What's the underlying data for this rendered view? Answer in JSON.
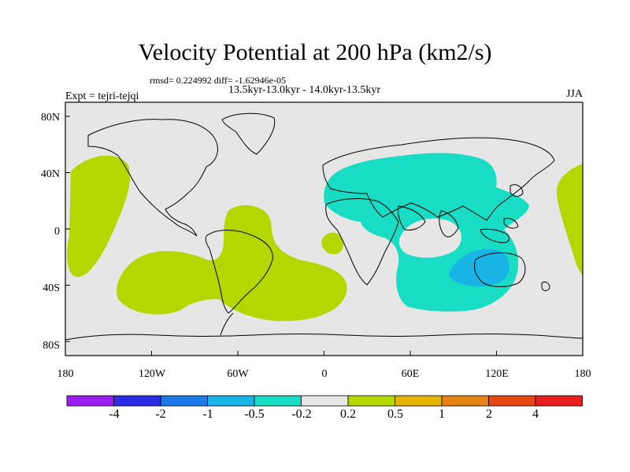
{
  "title": "Velocity Potential at 200 hPa (km2/s)",
  "stats": "rmsd= 0.224992 diff= -1.62946e-05",
  "subtitle": "13.5kyr-13.0kyr - 14.0kyr-13.5kyr",
  "experiment": "Expt = tejri-tejqi",
  "season": "JJA",
  "chart_data": {
    "type": "map",
    "projection": "cylindrical-equidistant",
    "xlim": [
      -180,
      180
    ],
    "ylim": [
      -90,
      90
    ],
    "x_tick_labels": [
      "180",
      "120W",
      "60W",
      "0",
      "60E",
      "120E",
      "180"
    ],
    "y_tick_labels": [
      "80N",
      "40N",
      "0",
      "40S",
      "80S"
    ],
    "x_tick_values": [
      -180,
      -120,
      -60,
      0,
      60,
      120,
      180
    ],
    "y_tick_values": [
      80,
      40,
      0,
      -40,
      -80
    ],
    "colorbar": {
      "colors": [
        "#9a1ef0",
        "#2c2ce6",
        "#1e78e6",
        "#18b4e6",
        "#18dcc4",
        "#e6e6e6",
        "#b4d700",
        "#e6b400",
        "#e68214",
        "#e64614",
        "#e61e1e"
      ],
      "labels": [
        "-4",
        "-2",
        "-1",
        "-0.5",
        "-0.2",
        "0.2",
        "0.5",
        "1",
        "2",
        "4"
      ]
    },
    "background_color": "#e6e6e6",
    "regions": [
      {
        "name": "north-pacific-positive",
        "level": "0.2 to 0.5",
        "color": "#b4d700"
      },
      {
        "name": "south-pacific-atlantic-positive",
        "level": "0.2 to 0.5",
        "color": "#b4d700"
      },
      {
        "name": "west-africa-positive",
        "level": "0.2 to 0.5",
        "color": "#b4d700"
      },
      {
        "name": "east-pacific-edge-positive",
        "level": "0.2 to 0.5",
        "color": "#b4d700"
      },
      {
        "name": "eurasia-indian-ocean-negative",
        "level": "-0.5 to -0.2",
        "color": "#18dcc4"
      },
      {
        "name": "australia-negative-core",
        "level": "-1 to -0.5",
        "color": "#18b4e6"
      }
    ]
  }
}
